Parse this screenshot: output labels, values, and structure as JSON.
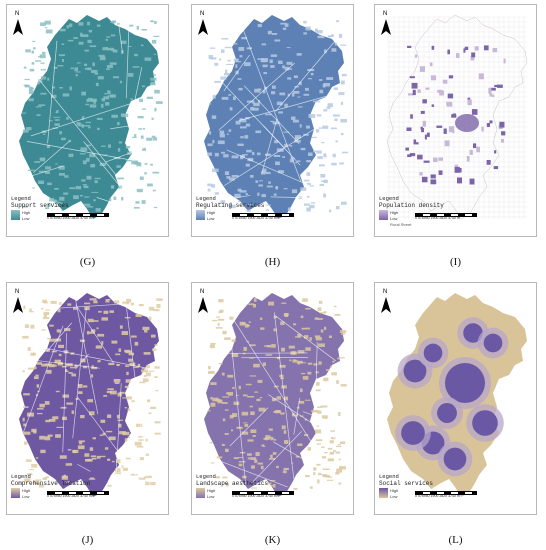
{
  "north_label": "N",
  "panels": [
    {
      "id": "G",
      "caption": "(G)",
      "legend_title": "Legend",
      "legend_name": "Support services",
      "high": "High",
      "low": "Low",
      "scale": "0 475950  1900  2820  3740",
      "unit": "m",
      "fill": "#3e8a94",
      "fill2": "#8bbfc3",
      "bg": "#ffffff",
      "type": "full"
    },
    {
      "id": "H",
      "caption": "(H)",
      "legend_title": "Legend",
      "legend_name": "Regulating services",
      "high": "High",
      "low": "Low",
      "scale": "0 475950  1900  2820  3740",
      "unit": "m",
      "fill": "#5d81b4",
      "fill2": "#b6c9e2",
      "bg": "#ffffff",
      "type": "full"
    },
    {
      "id": "I",
      "caption": "(I)",
      "legend_title": "Legend",
      "legend_name": "Population density",
      "high": "High",
      "low": "Low",
      "scale": "0 475950  1900  2820  3740",
      "unit": "m",
      "extra": "Rural Street",
      "fill": "#7b64a8",
      "fill2": "#c8b9d8",
      "bg": "#ffffff",
      "type": "grid"
    },
    {
      "id": "J",
      "caption": "(J)",
      "legend_title": "Legend",
      "legend_name": "Comprehensive location",
      "high": "High",
      "low": "Low",
      "scale": "0 475950  1900  2820  3740",
      "unit": "m",
      "fill": "#6e58a2",
      "fill2": "#e1cca4",
      "bg": "#ffffff",
      "type": "full"
    },
    {
      "id": "K",
      "caption": "(K)",
      "legend_title": "Legend",
      "legend_name": "Landscape aesthetics",
      "high": "High",
      "low": "Low",
      "scale": "0 475950  1900  2820  3740",
      "unit": "m",
      "fill": "#8473ad",
      "fill2": "#dcc8a0",
      "bg": "#ffffff",
      "type": "full"
    },
    {
      "id": "L",
      "caption": "(L)",
      "legend_title": "Legend",
      "legend_name": "Social services",
      "high": "High",
      "low": "Low",
      "scale": "0 475950  1900  2820  3740",
      "unit": "m",
      "fill": "#d9c499",
      "fill2": "#6a58a4",
      "bg": "#ffffff",
      "type": "blobs"
    }
  ]
}
